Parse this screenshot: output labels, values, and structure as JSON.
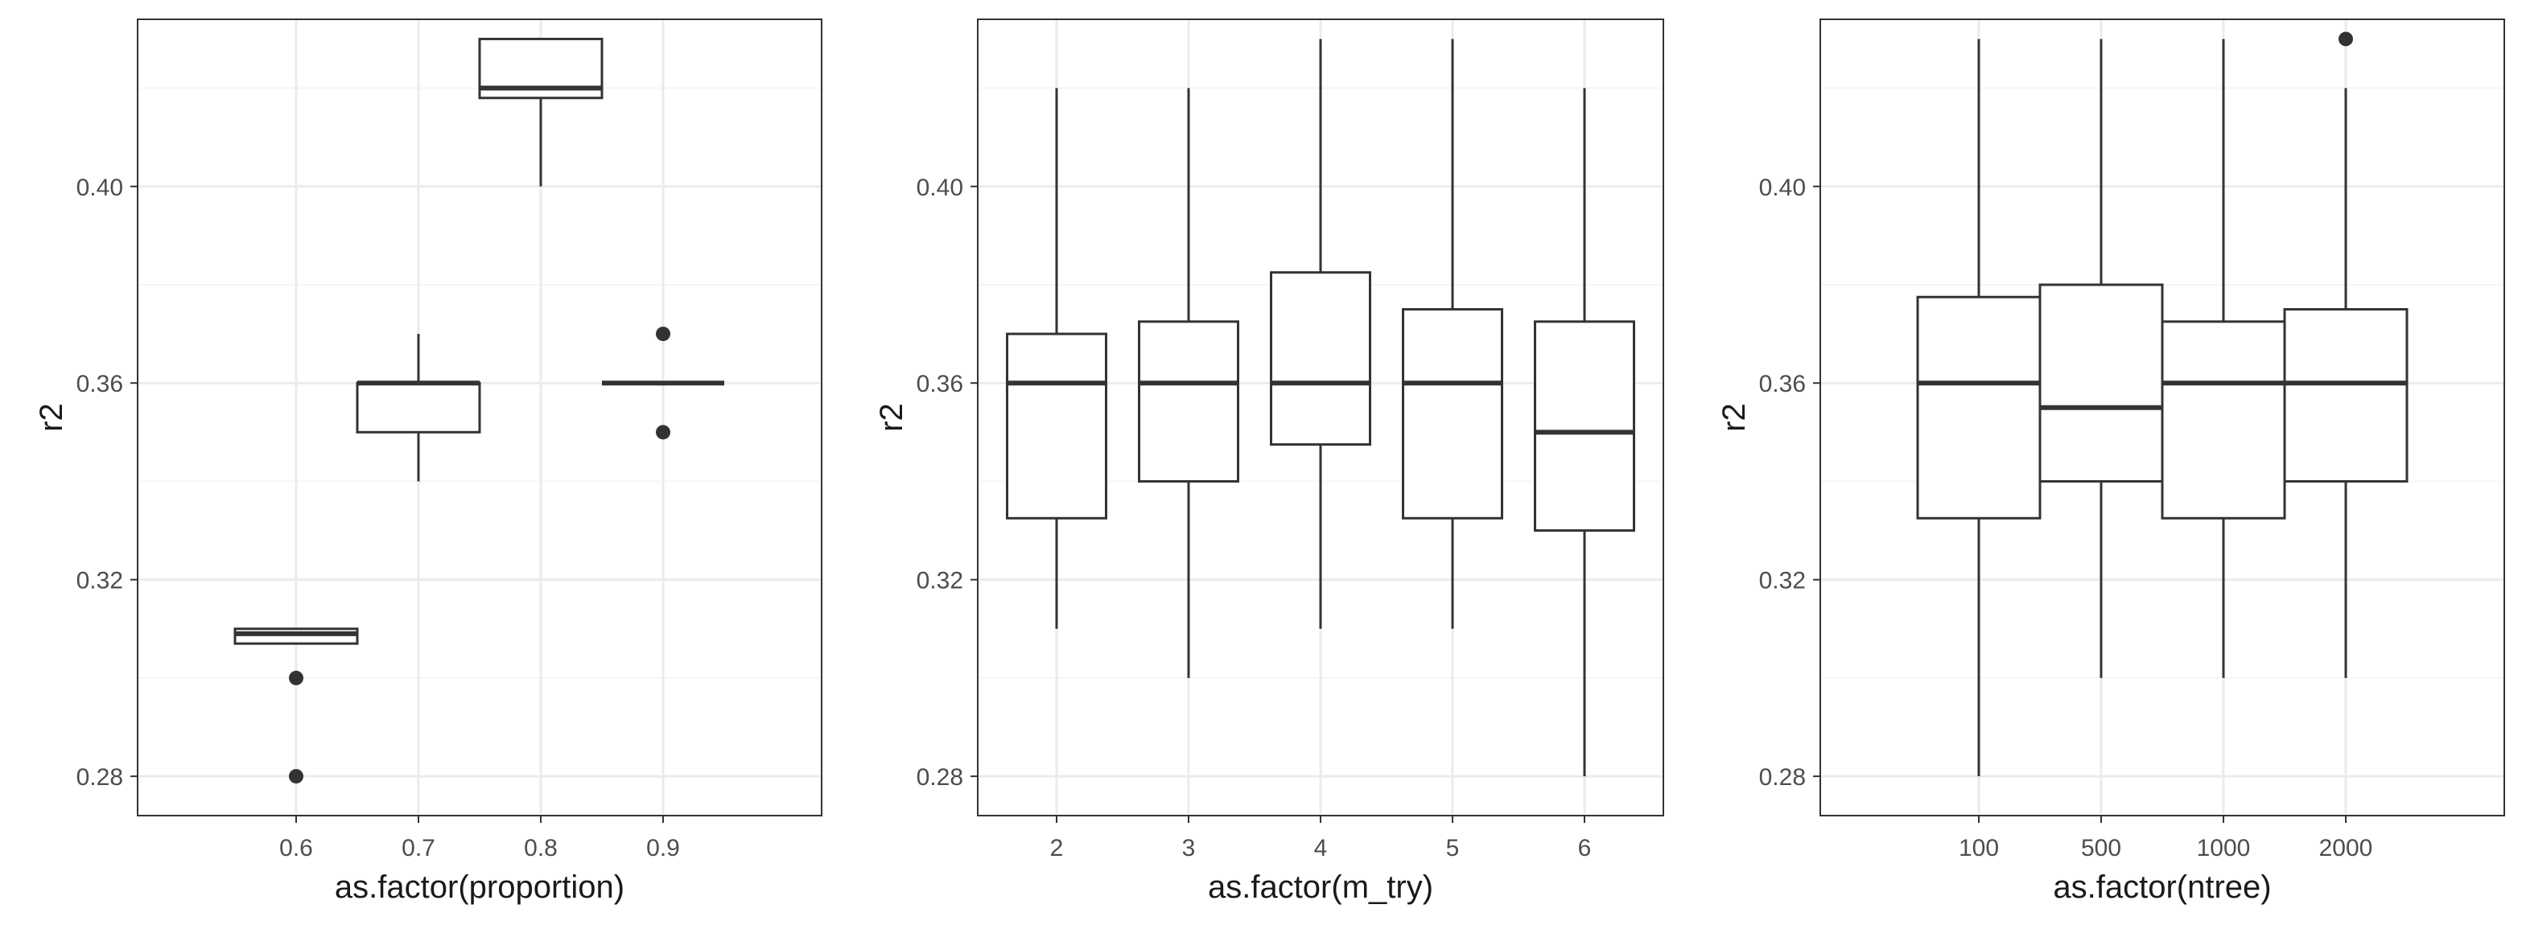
{
  "chart_data": [
    {
      "type": "boxplot",
      "xlabel": "as.factor(proportion)",
      "ylabel": "r2",
      "ylim": [
        0.272,
        0.434
      ],
      "yticks": [
        0.28,
        0.32,
        0.36,
        0.4
      ],
      "ytick_labels": [
        "0.28",
        "0.32",
        "0.36",
        "0.40"
      ],
      "grid": true,
      "categories": [
        "0.6",
        "0.7",
        "0.8",
        "0.9"
      ],
      "boxes": [
        {
          "category": "0.6",
          "whisker_low": 0.307,
          "q1": 0.307,
          "median": 0.309,
          "q3": 0.31,
          "whisker_high": 0.31,
          "outliers": [
            0.3,
            0.28
          ]
        },
        {
          "category": "0.7",
          "whisker_low": 0.34,
          "q1": 0.35,
          "median": 0.36,
          "q3": 0.36,
          "whisker_high": 0.37,
          "outliers": []
        },
        {
          "category": "0.8",
          "whisker_low": 0.4,
          "q1": 0.418,
          "median": 0.42,
          "q3": 0.43,
          "whisker_high": 0.43,
          "outliers": []
        },
        {
          "category": "0.9",
          "whisker_low": 0.36,
          "q1": 0.36,
          "median": 0.36,
          "q3": 0.36,
          "whisker_high": 0.36,
          "outliers": [
            0.37,
            0.35
          ]
        }
      ]
    },
    {
      "type": "boxplot",
      "xlabel": "as.factor(m_try)",
      "ylabel": "r2",
      "ylim": [
        0.272,
        0.434
      ],
      "yticks": [
        0.28,
        0.32,
        0.36,
        0.4
      ],
      "ytick_labels": [
        "0.28",
        "0.32",
        "0.36",
        "0.40"
      ],
      "grid": true,
      "categories": [
        "2",
        "3",
        "4",
        "5",
        "6"
      ],
      "boxes": [
        {
          "category": "2",
          "whisker_low": 0.31,
          "q1": 0.3325,
          "median": 0.36,
          "q3": 0.37,
          "whisker_high": 0.42,
          "outliers": []
        },
        {
          "category": "3",
          "whisker_low": 0.3,
          "q1": 0.34,
          "median": 0.36,
          "q3": 0.3725,
          "whisker_high": 0.42,
          "outliers": []
        },
        {
          "category": "4",
          "whisker_low": 0.31,
          "q1": 0.3475,
          "median": 0.36,
          "q3": 0.3825,
          "whisker_high": 0.43,
          "outliers": []
        },
        {
          "category": "5",
          "whisker_low": 0.31,
          "q1": 0.3325,
          "median": 0.36,
          "q3": 0.375,
          "whisker_high": 0.43,
          "outliers": []
        },
        {
          "category": "6",
          "whisker_low": 0.28,
          "q1": 0.33,
          "median": 0.35,
          "q3": 0.3725,
          "whisker_high": 0.42,
          "outliers": []
        }
      ]
    },
    {
      "type": "boxplot",
      "xlabel": "as.factor(ntree)",
      "ylabel": "r2",
      "ylim": [
        0.272,
        0.434
      ],
      "yticks": [
        0.28,
        0.32,
        0.36,
        0.4
      ],
      "ytick_labels": [
        "0.28",
        "0.32",
        "0.36",
        "0.40"
      ],
      "grid": true,
      "categories": [
        "100",
        "500",
        "1000",
        "2000"
      ],
      "boxes": [
        {
          "category": "100",
          "whisker_low": 0.28,
          "q1": 0.3325,
          "median": 0.36,
          "q3": 0.3775,
          "whisker_high": 0.43,
          "outliers": []
        },
        {
          "category": "500",
          "whisker_low": 0.3,
          "q1": 0.34,
          "median": 0.355,
          "q3": 0.38,
          "whisker_high": 0.43,
          "outliers": []
        },
        {
          "category": "1000",
          "whisker_low": 0.3,
          "q1": 0.3325,
          "median": 0.36,
          "q3": 0.3725,
          "whisker_high": 0.43,
          "outliers": []
        },
        {
          "category": "2000",
          "whisker_low": 0.3,
          "q1": 0.34,
          "median": 0.36,
          "q3": 0.375,
          "whisker_high": 0.42,
          "outliers": [
            0.43
          ]
        }
      ]
    }
  ],
  "style": {
    "panel_border": "#333333",
    "grid_major": "#ebebeb",
    "grid_minor": "#f5f5f5",
    "box_stroke": "#333333",
    "box_fill": "#ffffff",
    "outlier_fill": "#333333"
  }
}
